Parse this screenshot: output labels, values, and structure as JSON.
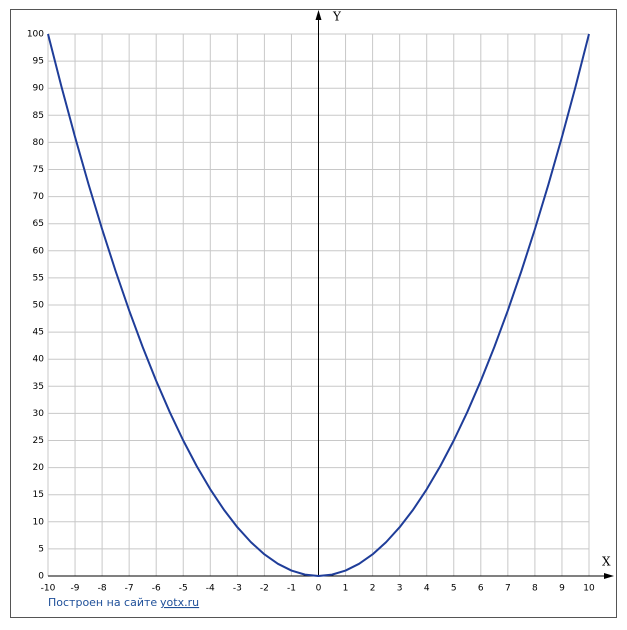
{
  "chart_data": {
    "type": "line",
    "x": [
      -10,
      -9.5,
      -9,
      -8.5,
      -8,
      -7.5,
      -7,
      -6.5,
      -6,
      -5.5,
      -5,
      -4.5,
      -4,
      -3.5,
      -3,
      -2.5,
      -2,
      -1.5,
      -1,
      -0.5,
      0,
      0.5,
      1,
      1.5,
      2,
      2.5,
      3,
      3.5,
      4,
      4.5,
      5,
      5.5,
      6,
      6.5,
      7,
      7.5,
      8,
      8.5,
      9,
      9.5,
      10
    ],
    "values": [
      100,
      90.25,
      81,
      72.25,
      64,
      56.25,
      49,
      42.25,
      36,
      30.25,
      25,
      20.25,
      16,
      12.25,
      9,
      6.25,
      4,
      2.25,
      1,
      0.25,
      0,
      0.25,
      1,
      2.25,
      4,
      6.25,
      9,
      12.25,
      16,
      20.25,
      25,
      30.25,
      36,
      42.25,
      49,
      56.25,
      64,
      72.25,
      81,
      90.25,
      100
    ],
    "color": "#1f3d99",
    "xlim": [
      -10,
      10
    ],
    "ylim": [
      0,
      100
    ],
    "xticks": [
      -10,
      -9,
      -8,
      -7,
      -6,
      -5,
      -4,
      -3,
      -2,
      -1,
      0,
      1,
      2,
      3,
      4,
      5,
      6,
      7,
      8,
      9,
      10
    ],
    "yticks": [
      0,
      5,
      10,
      15,
      20,
      25,
      30,
      35,
      40,
      45,
      50,
      55,
      60,
      65,
      70,
      75,
      80,
      85,
      90,
      95,
      100
    ],
    "grid": true,
    "x_label": "X",
    "y_label": "Y",
    "credit_text": "Построен на сайте",
    "credit_link": "yotx.ru"
  }
}
